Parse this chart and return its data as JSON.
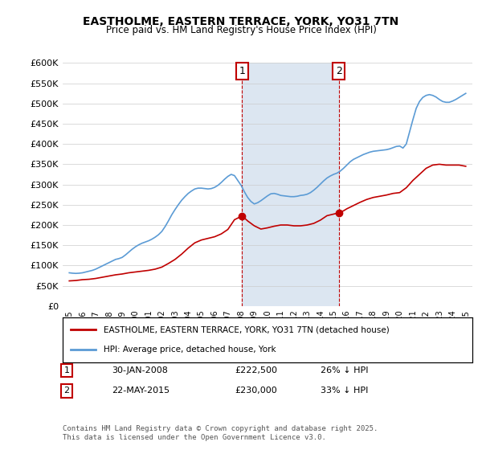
{
  "title1": "EASTHOLME, EASTERN TERRACE, YORK, YO31 7TN",
  "title2": "Price paid vs. HM Land Registry's House Price Index (HPI)",
  "ylabel_values": [
    "£0",
    "£50K",
    "£100K",
    "£150K",
    "£200K",
    "£250K",
    "£300K",
    "£350K",
    "£400K",
    "£450K",
    "£500K",
    "£550K",
    "£600K"
  ],
  "ylim": [
    0,
    600000
  ],
  "yticks": [
    0,
    50000,
    100000,
    150000,
    200000,
    250000,
    300000,
    350000,
    400000,
    450000,
    500000,
    550000,
    600000
  ],
  "xlim_start": 1994.5,
  "xlim_end": 2025.5,
  "marker1_x": 2008.08,
  "marker1_y": 222500,
  "marker1_label": "1",
  "marker1_date": "30-JAN-2008",
  "marker1_price": "£222,500",
  "marker1_hpi": "26% ↓ HPI",
  "marker2_x": 2015.39,
  "marker2_y": 230000,
  "marker2_label": "2",
  "marker2_date": "22-MAY-2015",
  "marker2_price": "£230,000",
  "marker2_hpi": "33% ↓ HPI",
  "hpi_color": "#5b9bd5",
  "price_color": "#c00000",
  "shading_color": "#dce6f1",
  "background_color": "#ffffff",
  "legend_label_price": "EASTHOLME, EASTERN TERRACE, YORK, YO31 7TN (detached house)",
  "legend_label_hpi": "HPI: Average price, detached house, York",
  "copyright_text": "Contains HM Land Registry data © Crown copyright and database right 2025.\nThis data is licensed under the Open Government Licence v3.0.",
  "hpi_data_x": [
    1995.0,
    1995.25,
    1995.5,
    1995.75,
    1996.0,
    1996.25,
    1996.5,
    1996.75,
    1997.0,
    1997.25,
    1997.5,
    1997.75,
    1998.0,
    1998.25,
    1998.5,
    1998.75,
    1999.0,
    1999.25,
    1999.5,
    1999.75,
    2000.0,
    2000.25,
    2000.5,
    2000.75,
    2001.0,
    2001.25,
    2001.5,
    2001.75,
    2002.0,
    2002.25,
    2002.5,
    2002.75,
    2003.0,
    2003.25,
    2003.5,
    2003.75,
    2004.0,
    2004.25,
    2004.5,
    2004.75,
    2005.0,
    2005.25,
    2005.5,
    2005.75,
    2006.0,
    2006.25,
    2006.5,
    2006.75,
    2007.0,
    2007.25,
    2007.5,
    2007.75,
    2008.0,
    2008.25,
    2008.5,
    2008.75,
    2009.0,
    2009.25,
    2009.5,
    2009.75,
    2010.0,
    2010.25,
    2010.5,
    2010.75,
    2011.0,
    2011.25,
    2011.5,
    2011.75,
    2012.0,
    2012.25,
    2012.5,
    2012.75,
    2013.0,
    2013.25,
    2013.5,
    2013.75,
    2014.0,
    2014.25,
    2014.5,
    2014.75,
    2015.0,
    2015.25,
    2015.5,
    2015.75,
    2016.0,
    2016.25,
    2016.5,
    2016.75,
    2017.0,
    2017.25,
    2017.5,
    2017.75,
    2018.0,
    2018.25,
    2018.5,
    2018.75,
    2019.0,
    2019.25,
    2019.5,
    2019.75,
    2020.0,
    2020.25,
    2020.5,
    2020.75,
    2021.0,
    2021.25,
    2021.5,
    2021.75,
    2022.0,
    2022.25,
    2022.5,
    2022.75,
    2023.0,
    2023.25,
    2023.5,
    2023.75,
    2024.0,
    2024.25,
    2024.5,
    2024.75,
    2025.0
  ],
  "hpi_data_y": [
    82000,
    81000,
    80500,
    81000,
    82000,
    84000,
    86000,
    88000,
    91000,
    95000,
    99000,
    103000,
    107000,
    111000,
    115000,
    117000,
    120000,
    126000,
    133000,
    140000,
    146000,
    151000,
    155000,
    158000,
    161000,
    165000,
    170000,
    176000,
    184000,
    196000,
    210000,
    225000,
    238000,
    250000,
    261000,
    270000,
    278000,
    284000,
    289000,
    291000,
    291000,
    290000,
    289000,
    290000,
    293000,
    298000,
    305000,
    313000,
    320000,
    325000,
    322000,
    310000,
    298000,
    282000,
    268000,
    258000,
    252000,
    255000,
    260000,
    266000,
    272000,
    277000,
    278000,
    276000,
    273000,
    272000,
    271000,
    270000,
    270000,
    271000,
    273000,
    274000,
    276000,
    280000,
    286000,
    293000,
    301000,
    309000,
    316000,
    321000,
    325000,
    328000,
    333000,
    340000,
    348000,
    356000,
    362000,
    366000,
    370000,
    374000,
    377000,
    380000,
    382000,
    383000,
    384000,
    385000,
    386000,
    388000,
    391000,
    394000,
    395000,
    390000,
    400000,
    430000,
    460000,
    488000,
    505000,
    515000,
    520000,
    522000,
    520000,
    516000,
    510000,
    505000,
    503000,
    503000,
    506000,
    510000,
    515000,
    520000,
    525000
  ],
  "price_data_x": [
    1995.0,
    1995.5,
    1996.0,
    1996.5,
    1997.0,
    1997.5,
    1998.0,
    1998.5,
    1999.0,
    1999.5,
    2000.0,
    2000.5,
    2001.0,
    2001.5,
    2002.0,
    2002.5,
    2003.0,
    2003.5,
    2004.0,
    2004.5,
    2005.0,
    2005.5,
    2006.0,
    2006.5,
    2007.0,
    2007.5,
    2008.08,
    2008.5,
    2009.0,
    2009.5,
    2010.0,
    2010.5,
    2011.0,
    2011.5,
    2012.0,
    2012.5,
    2013.0,
    2013.5,
    2014.0,
    2014.5,
    2015.39,
    2015.75,
    2016.0,
    2016.5,
    2017.0,
    2017.5,
    2018.0,
    2018.5,
    2019.0,
    2019.5,
    2020.0,
    2020.5,
    2021.0,
    2021.5,
    2022.0,
    2022.5,
    2023.0,
    2023.5,
    2024.0,
    2024.5,
    2025.0
  ],
  "price_data_y": [
    62000,
    63000,
    65000,
    66000,
    68000,
    71000,
    74000,
    77000,
    79000,
    82000,
    84000,
    86000,
    88000,
    91000,
    96000,
    105000,
    115000,
    128000,
    143000,
    156000,
    163000,
    167000,
    171000,
    178000,
    189000,
    213000,
    222500,
    210000,
    198000,
    190000,
    193000,
    197000,
    200000,
    200000,
    198000,
    198000,
    200000,
    204000,
    212000,
    223000,
    230000,
    235000,
    240000,
    248000,
    256000,
    263000,
    268000,
    271000,
    274000,
    278000,
    280000,
    292000,
    310000,
    325000,
    340000,
    348000,
    350000,
    348000,
    348000,
    348000,
    345000
  ]
}
